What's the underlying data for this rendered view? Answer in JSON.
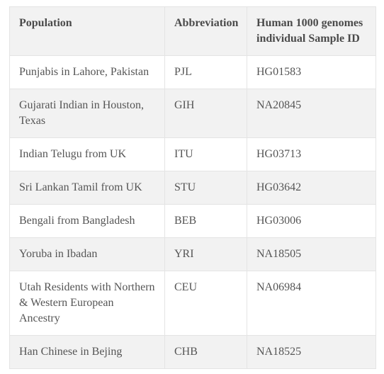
{
  "table": {
    "headers": [
      "Population",
      "Abbreviation",
      "Human 1000 genomes individual Sample ID"
    ],
    "rows": [
      [
        "Punjabis in Lahore, Pakistan",
        "PJL",
        "HG01583"
      ],
      [
        "Gujarati Indian in Houston, Texas",
        "GIH",
        "NA20845"
      ],
      [
        "Indian Telugu from UK",
        "ITU",
        "HG03713"
      ],
      [
        "Sri Lankan Tamil from UK",
        "STU",
        "HG03642"
      ],
      [
        "Bengali from Bangladesh",
        "BEB",
        "HG03006"
      ],
      [
        "Yoruba in Ibadan",
        "YRI",
        "NA18505"
      ],
      [
        "Utah Residents with Northern & Western European Ancestry",
        "CEU",
        "NA06984"
      ],
      [
        "Han Chinese in Bejing",
        "CHB",
        "NA18525"
      ]
    ]
  }
}
